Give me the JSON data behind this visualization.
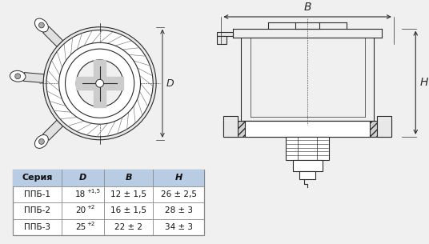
{
  "bg_color": "#f0f0f0",
  "table_header_bg": "#b8cce4",
  "table_border_color": "#888888",
  "table_header": [
    "Серия",
    "D",
    "B",
    "H"
  ],
  "table_rows_col0": [
    "ППБ-1",
    "ППБ-2",
    "ППБ-3"
  ],
  "table_rows_col1_base": [
    "18",
    "20",
    "25"
  ],
  "table_rows_col1_sup": [
    "+1,5",
    "+2",
    "+2"
  ],
  "table_rows_col2": [
    "12 ± 1,5",
    "16 ± 1,5",
    "22 ± 2"
  ],
  "table_rows_col3": [
    "26 ± 2,5",
    "28 ± 3",
    "34 ± 3"
  ],
  "line_color": "#2a2a2a",
  "dim_color": "#2a2a2a",
  "hatch_color": "#555555"
}
